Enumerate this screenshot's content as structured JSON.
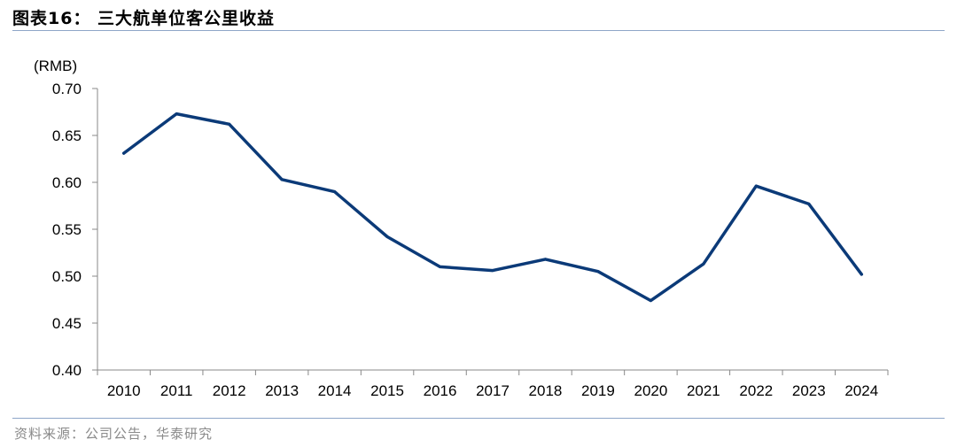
{
  "header": {
    "title": "图表16： 三大航单位客公里收益"
  },
  "footer": {
    "source": "资料来源：公司公告，华泰研究"
  },
  "colors": {
    "line": "#0b3a78",
    "axis": "#888888",
    "rule": "#8ea6c8"
  },
  "chart_data": {
    "type": "line",
    "title": "",
    "xlabel": "",
    "ylabel": "(RMB)",
    "ylim": [
      0.4,
      0.7
    ],
    "yticks": [
      0.4,
      0.45,
      0.5,
      0.55,
      0.6,
      0.65,
      0.7
    ],
    "ytick_labels": [
      "0.40",
      "0.45",
      "0.50",
      "0.55",
      "0.60",
      "0.65",
      "0.70"
    ],
    "grid": false,
    "legend": "none",
    "categories": [
      "2010",
      "2011",
      "2012",
      "2013",
      "2014",
      "2015",
      "2016",
      "2017",
      "2018",
      "2019",
      "2020",
      "2021",
      "2022",
      "2023",
      "2024"
    ],
    "series": [
      {
        "values": [
          0.631,
          0.673,
          0.662,
          0.603,
          0.59,
          0.542,
          0.51,
          0.506,
          0.518,
          0.505,
          0.474,
          0.513,
          0.596,
          0.577,
          0.502
        ]
      }
    ]
  }
}
